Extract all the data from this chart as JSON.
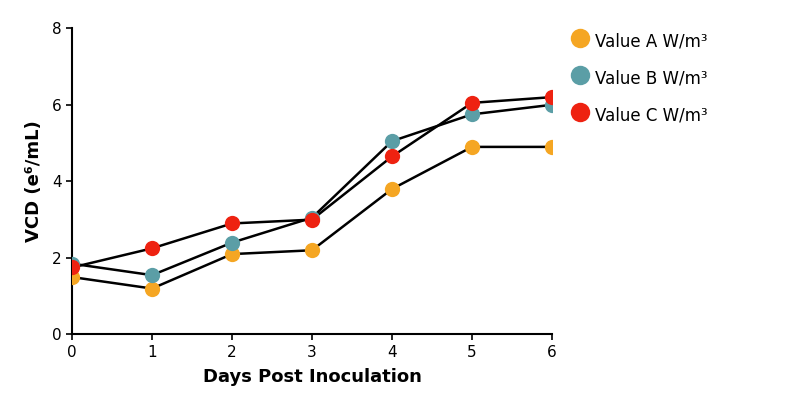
{
  "series": [
    {
      "label": "Value A W/m³",
      "color": "#F5A623",
      "x": [
        0,
        1,
        2,
        3,
        4,
        5,
        6
      ],
      "y": [
        1.5,
        1.2,
        2.1,
        2.2,
        3.8,
        4.9,
        4.9
      ]
    },
    {
      "label": "Value B W/m³",
      "color": "#5B9EA6",
      "x": [
        0,
        1,
        2,
        3,
        4,
        5,
        6
      ],
      "y": [
        1.85,
        1.55,
        2.4,
        3.05,
        5.05,
        5.75,
        6.0
      ]
    },
    {
      "label": "Value C W/m³",
      "color": "#EE2211",
      "x": [
        0,
        1,
        2,
        3,
        4,
        5,
        6
      ],
      "y": [
        1.75,
        2.25,
        2.9,
        3.0,
        4.65,
        6.05,
        6.2
      ]
    }
  ],
  "xlabel": "Days Post Inoculation",
  "ylabel": "VCD (e⁶/mL)",
  "xlim": [
    0,
    6
  ],
  "ylim": [
    0,
    8
  ],
  "yticks": [
    0,
    2,
    4,
    6,
    8
  ],
  "xticks": [
    0,
    1,
    2,
    3,
    4,
    5,
    6
  ],
  "marker_size": 11,
  "line_width": 1.8,
  "line_color": "black",
  "background_color": "#ffffff"
}
